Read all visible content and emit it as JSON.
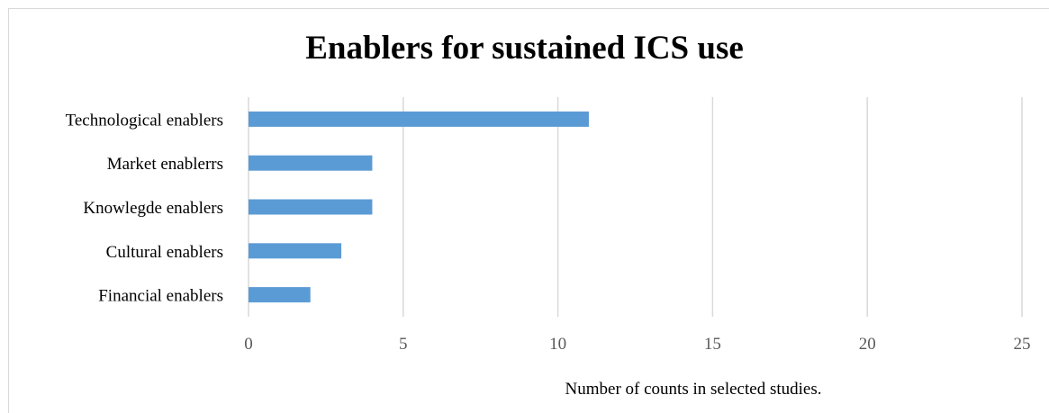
{
  "chart_data": {
    "type": "bar",
    "orientation": "horizontal",
    "title": "Enablers for sustained ICS use",
    "xlabel": "Number of counts in selected studies.",
    "ylabel": "",
    "categories": [
      "Technological enablers",
      "Market enablerrs",
      "Knowlegde enablers",
      "Cultural enablers",
      "Financial enablers"
    ],
    "values": [
      11,
      4,
      4,
      3,
      2
    ],
    "xlim": [
      0,
      25
    ],
    "xticks": [
      "0",
      "5",
      "10",
      "15",
      "20",
      "25"
    ],
    "grid": true,
    "legend": "none",
    "bar_color": "#5b9bd5",
    "grid_color": "#d9d9d9",
    "tick_label_color": "#595959",
    "category_label_color": "#000000"
  }
}
